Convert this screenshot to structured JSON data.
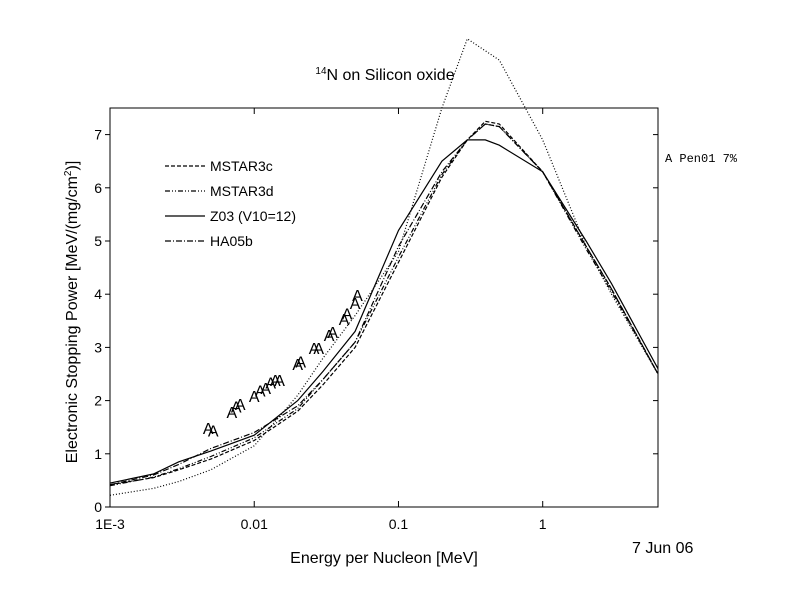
{
  "chart_data": {
    "type": "line",
    "title_sup": "14",
    "title": "N on Silicon oxide",
    "ylabel": "Electronic Stopping Power [MeV/(mg/cm",
    "ylabel_sup": "2",
    "ylabel_end": ")]",
    "xlabel": "Energy per Nucleon [MeV]",
    "annotations": [
      "A Pen01 7%",
      "7 Jun 06"
    ],
    "xscale": "log",
    "xlim": [
      0.001,
      6.3
    ],
    "ylim": [
      0,
      7.5
    ],
    "xticks": [
      {
        "value": 0.001,
        "label": "1E-3"
      },
      0.01,
      0.1,
      1
    ],
    "yticks": [
      0,
      1,
      2,
      3,
      4,
      5,
      6,
      7
    ],
    "series": [
      {
        "name": "MSTAR3c",
        "color": "#000000",
        "dash": "4,2",
        "x": [
          0.001,
          0.002,
          0.003,
          0.005,
          0.01,
          0.02,
          0.03,
          0.05,
          0.1,
          0.2,
          0.3,
          0.4,
          0.5,
          1,
          2,
          3,
          6.3
        ],
        "values": [
          0.42,
          0.55,
          0.7,
          0.9,
          1.25,
          1.8,
          2.3,
          3.0,
          4.6,
          6.2,
          6.9,
          7.25,
          7.2,
          6.3,
          4.9,
          4.1,
          2.5
        ]
      },
      {
        "name": "MSTAR3d",
        "color": "#000000",
        "dash": "5,2,1,2,1,2",
        "x": [
          0.001,
          0.002,
          0.003,
          0.005,
          0.01,
          0.02,
          0.03,
          0.05,
          0.1,
          0.2,
          0.3,
          0.4,
          0.5,
          1,
          2,
          3,
          6.3
        ],
        "values": [
          0.4,
          0.56,
          0.72,
          0.95,
          1.3,
          1.85,
          2.4,
          3.1,
          4.7,
          6.25,
          6.9,
          7.2,
          7.15,
          6.3,
          4.85,
          4.05,
          2.5
        ]
      },
      {
        "name": "Z03 (V10=12)",
        "color": "#000000",
        "dash": "",
        "x": [
          0.001,
          0.002,
          0.003,
          0.005,
          0.01,
          0.02,
          0.03,
          0.05,
          0.1,
          0.2,
          0.3,
          0.4,
          0.5,
          1,
          2,
          3,
          6.3
        ],
        "values": [
          0.45,
          0.62,
          0.85,
          1.05,
          1.35,
          2.0,
          2.55,
          3.3,
          5.2,
          6.5,
          6.9,
          6.9,
          6.8,
          6.3,
          5.0,
          4.2,
          2.6
        ]
      },
      {
        "name": "HA05b",
        "color": "#000000",
        "dash": "6,2,1,2",
        "x": [
          0.001,
          0.002,
          0.003,
          0.005,
          0.01,
          0.02,
          0.03,
          0.05,
          0.1,
          0.2,
          0.3,
          0.4,
          0.5,
          1,
          2,
          3,
          6.3
        ],
        "values": [
          0.42,
          0.6,
          0.8,
          1.1,
          1.4,
          1.9,
          2.4,
          3.1,
          4.9,
          6.3,
          6.9,
          7.2,
          7.15,
          6.3,
          4.9,
          4.1,
          2.5
        ]
      },
      {
        "color": "#000000",
        "dash": "1,2",
        "x": [
          0.001,
          0.002,
          0.003,
          0.005,
          0.01,
          0.02,
          0.03,
          0.05,
          0.1,
          0.2,
          0.3,
          0.5,
          1,
          2,
          3,
          6.3
        ],
        "values": [
          0.22,
          0.35,
          0.48,
          0.7,
          1.15,
          2.1,
          2.8,
          3.6,
          4.8,
          7.5,
          8.8,
          8.4,
          6.9,
          4.9,
          4.0,
          2.5
        ]
      }
    ],
    "points": {
      "marker": "A",
      "x": [
        0.0048,
        0.0052,
        0.007,
        0.0075,
        0.008,
        0.01,
        0.011,
        0.012,
        0.013,
        0.014,
        0.015,
        0.02,
        0.021,
        0.026,
        0.028,
        0.033,
        0.035,
        0.042,
        0.044,
        0.05,
        0.052
      ],
      "y": [
        1.45,
        1.4,
        1.75,
        1.85,
        1.9,
        2.05,
        2.15,
        2.2,
        2.3,
        2.35,
        2.35,
        2.65,
        2.7,
        2.95,
        2.95,
        3.2,
        3.25,
        3.5,
        3.6,
        3.8,
        3.95
      ]
    }
  }
}
